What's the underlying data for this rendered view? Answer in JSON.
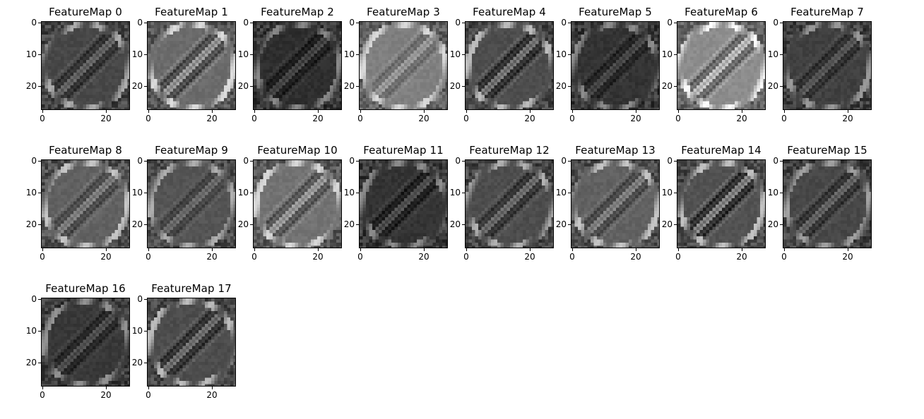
{
  "figure": {
    "panels": [
      {
        "title": "FeatureMap 0",
        "tone": 0.28,
        "contrast": 0.9,
        "stripe": 0.55
      },
      {
        "title": "FeatureMap 1",
        "tone": 0.42,
        "contrast": 1.0,
        "stripe": 0.85
      },
      {
        "title": "FeatureMap 2",
        "tone": 0.18,
        "contrast": 0.8,
        "stripe": 0.45
      },
      {
        "title": "FeatureMap 3",
        "tone": 0.5,
        "contrast": 0.8,
        "stripe": 0.5
      },
      {
        "title": "FeatureMap 4",
        "tone": 0.3,
        "contrast": 1.0,
        "stripe": 0.8
      },
      {
        "title": "FeatureMap 5",
        "tone": 0.2,
        "contrast": 0.8,
        "stripe": 0.4
      },
      {
        "title": "FeatureMap 6",
        "tone": 0.55,
        "contrast": 1.0,
        "stripe": 0.95
      },
      {
        "title": "FeatureMap 7",
        "tone": 0.25,
        "contrast": 0.8,
        "stripe": 0.45
      },
      {
        "title": "FeatureMap 8",
        "tone": 0.38,
        "contrast": 0.9,
        "stripe": 0.6
      },
      {
        "title": "FeatureMap 9",
        "tone": 0.33,
        "contrast": 0.8,
        "stripe": 0.45
      },
      {
        "title": "FeatureMap 10",
        "tone": 0.45,
        "contrast": 0.9,
        "stripe": 0.75
      },
      {
        "title": "FeatureMap 11",
        "tone": 0.2,
        "contrast": 0.8,
        "stripe": 0.55
      },
      {
        "title": "FeatureMap 12",
        "tone": 0.3,
        "contrast": 0.9,
        "stripe": 0.6
      },
      {
        "title": "FeatureMap 13",
        "tone": 0.38,
        "contrast": 0.9,
        "stripe": 0.6
      },
      {
        "title": "FeatureMap 14",
        "tone": 0.32,
        "contrast": 1.0,
        "stripe": 0.95
      },
      {
        "title": "FeatureMap 15",
        "tone": 0.28,
        "contrast": 0.8,
        "stripe": 0.55
      },
      {
        "title": "FeatureMap 16",
        "tone": 0.22,
        "contrast": 0.8,
        "stripe": 0.45
      },
      {
        "title": "FeatureMap 17",
        "tone": 0.3,
        "contrast": 1.0,
        "stripe": 0.7
      }
    ],
    "yticks": [
      "0",
      "10",
      "20"
    ],
    "xticks": [
      "0",
      "20"
    ],
    "colormap": "gray"
  }
}
